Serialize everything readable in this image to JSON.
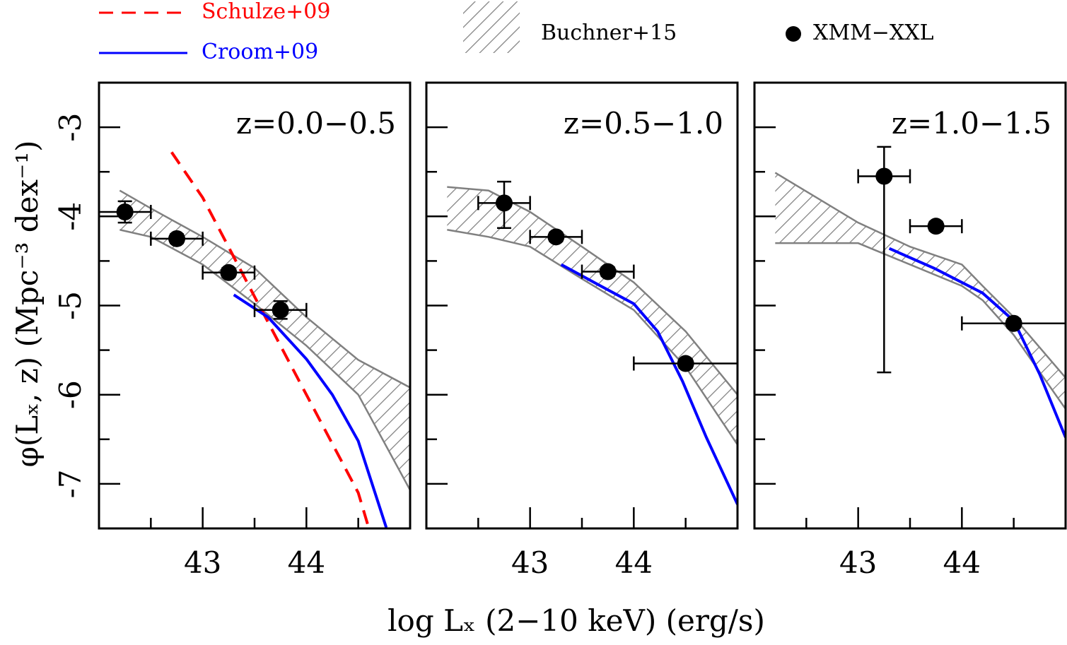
{
  "chart_data": [
    {
      "type": "line",
      "title": "z=0.0−0.5",
      "xlabel": "log Lₓ (2−10 keV)  (erg/s)",
      "ylabel": "φ(Lₓ, z)  (Mpc⁻³ dex⁻¹)",
      "xlim": [
        42,
        45
      ],
      "ylim": [
        -7.5,
        -2.5
      ],
      "xticks": [
        43,
        44
      ],
      "yticks": [
        -3,
        -4,
        -5,
        -6,
        -7
      ],
      "xminorticks": [
        42.5,
        43.5,
        44.5
      ],
      "yminorticks": [
        -3.5,
        -4.5,
        -5.5,
        -6.5
      ],
      "series": [
        {
          "name": "Schulze+09",
          "kind": "line",
          "style": "dashed",
          "color": "#ff0000",
          "x": [
            42.7,
            43.0,
            43.5,
            44.0,
            44.5,
            44.6
          ],
          "values": [
            -3.28,
            -3.79,
            -4.9,
            -6.0,
            -7.1,
            -7.49
          ]
        },
        {
          "name": "Croom+09",
          "kind": "line",
          "style": "solid",
          "color": "#0000ff",
          "x": [
            43.3,
            43.63,
            44.0,
            44.25,
            44.5,
            44.77
          ],
          "values": [
            -4.88,
            -5.13,
            -5.6,
            -6.0,
            -6.52,
            -7.49
          ]
        },
        {
          "name": "Buchner+15",
          "kind": "band",
          "color": "#808080",
          "x": [
            42.2,
            42.5,
            43.0,
            43.5,
            44.0,
            44.5,
            45.0
          ],
          "upper": [
            -3.71,
            -3.91,
            -4.23,
            -4.58,
            -5.13,
            -5.61,
            -5.92
          ],
          "lower": [
            -4.15,
            -4.23,
            -4.54,
            -4.98,
            -5.45,
            -6.0,
            -7.07
          ]
        },
        {
          "name": "XMM−XXL",
          "kind": "points",
          "color": "#000000",
          "x": [
            42.25,
            42.75,
            43.25,
            43.75
          ],
          "values": [
            -3.95,
            -4.25,
            -4.63,
            -5.05
          ],
          "xerr": [
            0.25,
            0.25,
            0.25,
            0.25
          ],
          "yerr_minus": [
            0.12,
            0.05,
            0.05,
            0.1
          ],
          "yerr_plus": [
            0.12,
            0.05,
            0.05,
            0.1
          ]
        }
      ]
    },
    {
      "type": "line",
      "title": "z=0.5−1.0",
      "xlim": [
        42,
        45
      ],
      "ylim": [
        -7.5,
        -2.5
      ],
      "xticks": [
        43,
        44
      ],
      "yticks": [
        -3,
        -4,
        -5,
        -6,
        -7
      ],
      "xminorticks": [
        42.5,
        43.5,
        44.5
      ],
      "yminorticks": [
        -3.5,
        -4.5,
        -5.5,
        -6.5
      ],
      "series": [
        {
          "name": "Croom+09",
          "kind": "line",
          "style": "solid",
          "color": "#0000ff",
          "x": [
            43.3,
            43.68,
            44.0,
            44.23,
            44.47,
            44.7,
            45.0
          ],
          "values": [
            -4.54,
            -4.78,
            -4.98,
            -5.29,
            -5.85,
            -6.48,
            -7.23
          ]
        },
        {
          "name": "Buchner+15",
          "kind": "band",
          "color": "#808080",
          "x": [
            42.2,
            42.6,
            43.0,
            43.5,
            44.0,
            44.5,
            45.0
          ],
          "upper": [
            -3.67,
            -3.71,
            -3.95,
            -4.34,
            -4.74,
            -5.29,
            -6.0
          ],
          "lower": [
            -4.15,
            -4.23,
            -4.34,
            -4.7,
            -5.05,
            -5.69,
            -6.56
          ]
        },
        {
          "name": "XMM−XXL",
          "kind": "points",
          "color": "#000000",
          "x": [
            42.75,
            43.25,
            43.75,
            44.5
          ],
          "values": [
            -3.85,
            -4.23,
            -4.62,
            -5.65
          ],
          "xerr": [
            0.25,
            0.25,
            0.25,
            0.5
          ],
          "yerr_minus": [
            0.28,
            0.05,
            0.05,
            0.05
          ],
          "yerr_plus": [
            0.24,
            0.05,
            0.05,
            0.05
          ]
        }
      ]
    },
    {
      "type": "line",
      "title": "z=1.0−1.5",
      "xlim": [
        42,
        45
      ],
      "ylim": [
        -7.5,
        -2.5
      ],
      "xticks": [
        43,
        44
      ],
      "yticks": [
        -3,
        -4,
        -5,
        -6,
        -7
      ],
      "xminorticks": [
        42.5,
        43.5,
        44.5
      ],
      "yminorticks": [
        -3.5,
        -4.5,
        -5.5,
        -6.5
      ],
      "series": [
        {
          "name": "Croom+09",
          "kind": "line",
          "style": "solid",
          "color": "#0000ff",
          "x": [
            43.3,
            43.73,
            44.2,
            44.5,
            44.75,
            45.0
          ],
          "values": [
            -4.36,
            -4.58,
            -4.86,
            -5.17,
            -5.77,
            -6.48
          ]
        },
        {
          "name": "Buchner+15",
          "kind": "band",
          "color": "#808080",
          "x": [
            42.2,
            43.0,
            43.5,
            44.0,
            44.2,
            44.5,
            45.0
          ],
          "upper": [
            -3.51,
            -4.07,
            -4.34,
            -4.54,
            -4.78,
            -5.13,
            -5.81
          ],
          "lower": [
            -4.3,
            -4.3,
            -4.54,
            -4.78,
            -4.94,
            -5.33,
            -6.16
          ]
        },
        {
          "name": "XMM−XXL",
          "kind": "points",
          "color": "#000000",
          "x": [
            43.25,
            43.75,
            44.5
          ],
          "values": [
            -3.55,
            -4.11,
            -5.2
          ],
          "xerr": [
            0.25,
            0.25,
            0.5
          ],
          "yerr_minus": [
            2.2,
            0.05,
            0.05
          ],
          "yerr_plus": [
            0.33,
            0.05,
            0.05
          ]
        }
      ]
    }
  ]
}
